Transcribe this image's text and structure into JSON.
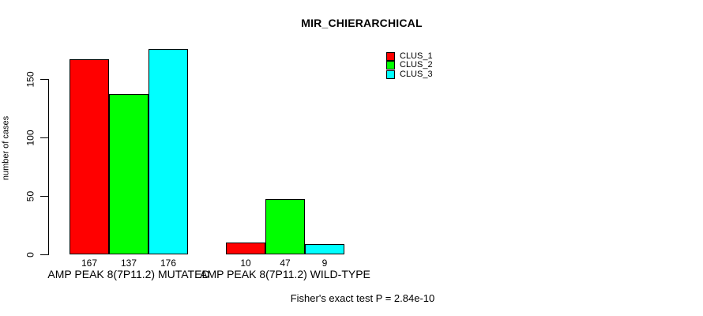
{
  "page": {
    "background": "#ffffff",
    "text_color": "#000000"
  },
  "chart_data": {
    "type": "bar",
    "title": "MIR_CHIERARCHICAL",
    "xlabel": "",
    "ylabel": "number of cases",
    "ylim": [
      0,
      176
    ],
    "yticks": [
      0,
      50,
      100,
      150
    ],
    "grid": false,
    "bar_value_labels": true,
    "legend_position": "top-right-inside",
    "categories": [
      "AMP PEAK 8(7P11.2) MUTATED",
      "AMP PEAK 8(7P11.2) WILD-TYPE"
    ],
    "series": [
      {
        "name": "CLUS_1",
        "color": "#FF0000",
        "values": [
          167,
          10
        ]
      },
      {
        "name": "CLUS_2",
        "color": "#00FF00",
        "values": [
          137,
          47
        ]
      },
      {
        "name": "CLUS_3",
        "color": "#00FFFF",
        "values": [
          176,
          9
        ]
      }
    ],
    "annotation": "Fisher's exact test P = 2.84e-10"
  }
}
